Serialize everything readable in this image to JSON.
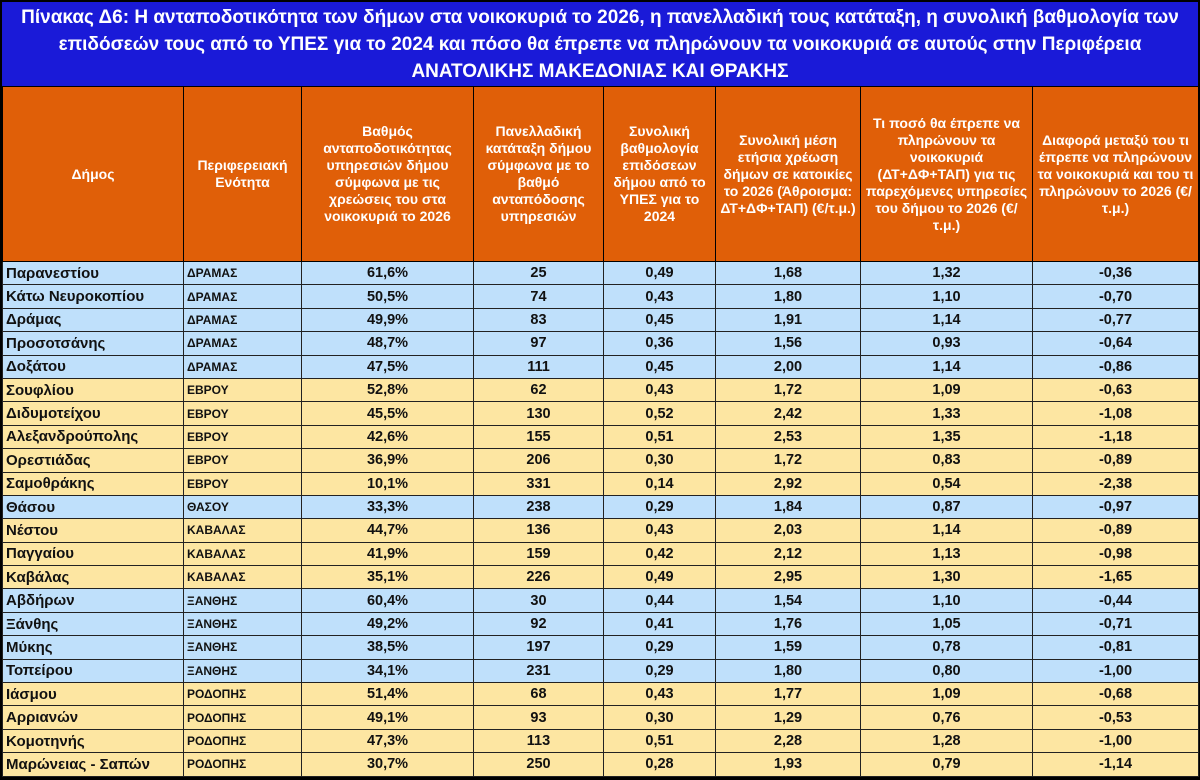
{
  "title": {
    "line1": "Πίνακας Δ6: Η ανταποδοτικότητα των δήμων στα νοικοκυριά το 2026, η πανελλαδική τους κατάταξη, η συνολική βαθμολογία των επιδόσεών τους από το ΥΠΕΣ για το 2024 και πόσο θα έπρεπε να πληρώνουν τα νοικοκυριά σε αυτούς στην Περιφέρεια",
    "region": "ΑΝΑΤΟΛΙΚΗΣ ΜΑΚΕΔΟΝΙΑΣ ΚΑΙ ΘΡΑΚΗΣ"
  },
  "columns": [
    "Δήμος",
    "Περιφερειακή Ενότητα",
    "Βαθμός ανταποδοτικότητας υπηρεσιών δήμου σύμφωνα με τις χρεώσεις του στα νοικοκυριά το 2026",
    "Πανελλαδική κατάταξη δήμου σύμφωνα με το βαθμό ανταπόδοσης υπηρεσιών",
    "Συνολική βαθμολογία επιδόσεων δήμου από το ΥΠΕΣ για το 2024",
    "Συνολική μέση ετήσια χρέωση δήμων σε κατοικίες το 2026 (Άθροισμα: ΔΤ+ΔΦ+ΤΑΠ) (€/τ.μ.)",
    "Τι ποσό θα έπρεπε να πληρώνουν τα νοικοκυριά (ΔΤ+ΔΦ+ΤΑΠ) για τις παρεχόμενες υπηρεσίες του δήμου το 2026 (€/τ.μ.)",
    "Διαφορά μεταξύ του τι έπρεπε να πληρώνουν τα νοικοκυριά και του τι πληρώνουν το 2026 (€/τ.μ.)"
  ],
  "row_colors": {
    "blue": "#bfe0fb",
    "yellow": "#fde6a2"
  },
  "rows": [
    {
      "tone": "blue",
      "cells": [
        "Παρανεστίου",
        "ΔΡΑΜΑΣ",
        "61,6%",
        "25",
        "0,49",
        "1,68",
        "1,32",
        "-0,36"
      ]
    },
    {
      "tone": "blue",
      "cells": [
        "Κάτω Νευροκοπίου",
        "ΔΡΑΜΑΣ",
        "50,5%",
        "74",
        "0,43",
        "1,80",
        "1,10",
        "-0,70"
      ]
    },
    {
      "tone": "blue",
      "cells": [
        "Δράμας",
        "ΔΡΑΜΑΣ",
        "49,9%",
        "83",
        "0,45",
        "1,91",
        "1,14",
        "-0,77"
      ]
    },
    {
      "tone": "blue",
      "cells": [
        "Προσοτσάνης",
        "ΔΡΑΜΑΣ",
        "48,7%",
        "97",
        "0,36",
        "1,56",
        "0,93",
        "-0,64"
      ]
    },
    {
      "tone": "blue",
      "cells": [
        "Δοξάτου",
        "ΔΡΑΜΑΣ",
        "47,5%",
        "111",
        "0,45",
        "2,00",
        "1,14",
        "-0,86"
      ]
    },
    {
      "tone": "yellow",
      "cells": [
        "Σουφλίου",
        "ΕΒΡΟΥ",
        "52,8%",
        "62",
        "0,43",
        "1,72",
        "1,09",
        "-0,63"
      ]
    },
    {
      "tone": "yellow",
      "cells": [
        "Διδυμοτείχου",
        "ΕΒΡΟΥ",
        "45,5%",
        "130",
        "0,52",
        "2,42",
        "1,33",
        "-1,08"
      ]
    },
    {
      "tone": "yellow",
      "cells": [
        "Αλεξανδρούπολης",
        "ΕΒΡΟΥ",
        "42,6%",
        "155",
        "0,51",
        "2,53",
        "1,35",
        "-1,18"
      ]
    },
    {
      "tone": "yellow",
      "cells": [
        "Ορεστιάδας",
        "ΕΒΡΟΥ",
        "36,9%",
        "206",
        "0,30",
        "1,72",
        "0,83",
        "-0,89"
      ]
    },
    {
      "tone": "yellow",
      "cells": [
        "Σαμοθράκης",
        "ΕΒΡΟΥ",
        "10,1%",
        "331",
        "0,14",
        "2,92",
        "0,54",
        "-2,38"
      ]
    },
    {
      "tone": "blue",
      "cells": [
        "Θάσου",
        "ΘΑΣΟΥ",
        "33,3%",
        "238",
        "0,29",
        "1,84",
        "0,87",
        "-0,97"
      ]
    },
    {
      "tone": "yellow",
      "cells": [
        "Νέστου",
        "ΚΑΒΑΛΑΣ",
        "44,7%",
        "136",
        "0,43",
        "2,03",
        "1,14",
        "-0,89"
      ]
    },
    {
      "tone": "yellow",
      "cells": [
        "Παγγαίου",
        "ΚΑΒΑΛΑΣ",
        "41,9%",
        "159",
        "0,42",
        "2,12",
        "1,13",
        "-0,98"
      ]
    },
    {
      "tone": "yellow",
      "cells": [
        "Καβάλας",
        "ΚΑΒΑΛΑΣ",
        "35,1%",
        "226",
        "0,49",
        "2,95",
        "1,30",
        "-1,65"
      ]
    },
    {
      "tone": "blue",
      "cells": [
        "Αβδήρων",
        "ΞΑΝΘΗΣ",
        "60,4%",
        "30",
        "0,44",
        "1,54",
        "1,10",
        "-0,44"
      ]
    },
    {
      "tone": "blue",
      "cells": [
        "Ξάνθης",
        "ΞΑΝΘΗΣ",
        "49,2%",
        "92",
        "0,41",
        "1,76",
        "1,05",
        "-0,71"
      ]
    },
    {
      "tone": "blue",
      "cells": [
        "Μύκης",
        "ΞΑΝΘΗΣ",
        "38,5%",
        "197",
        "0,29",
        "1,59",
        "0,78",
        "-0,81"
      ]
    },
    {
      "tone": "blue",
      "cells": [
        "Τοπείρου",
        "ΞΑΝΘΗΣ",
        "34,1%",
        "231",
        "0,29",
        "1,80",
        "0,80",
        "-1,00"
      ]
    },
    {
      "tone": "yellow",
      "cells": [
        "Ιάσμου",
        "ΡΟΔΟΠΗΣ",
        "51,4%",
        "68",
        "0,43",
        "1,77",
        "1,09",
        "-0,68"
      ]
    },
    {
      "tone": "yellow",
      "cells": [
        "Αρριανών",
        "ΡΟΔΟΠΗΣ",
        "49,1%",
        "93",
        "0,30",
        "1,29",
        "0,76",
        "-0,53"
      ]
    },
    {
      "tone": "yellow",
      "cells": [
        "Κομοτηνής",
        "ΡΟΔΟΠΗΣ",
        "47,3%",
        "113",
        "0,51",
        "2,28",
        "1,28",
        "-1,00"
      ]
    },
    {
      "tone": "yellow",
      "cells": [
        "Μαρώνειας - Σαπών",
        "ΡΟΔΟΠΗΣ",
        "30,7%",
        "250",
        "0,28",
        "1,93",
        "0,79",
        "-1,14"
      ]
    }
  ]
}
